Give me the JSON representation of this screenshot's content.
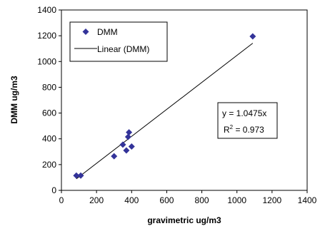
{
  "chart_data": {
    "type": "scatter",
    "title": "",
    "xlabel": "gravimetric ug/m3",
    "ylabel": "DMM ug/m3",
    "xlim": [
      0,
      1400
    ],
    "ylim": [
      0,
      1400
    ],
    "xticks": [
      0,
      200,
      400,
      600,
      800,
      1000,
      1200,
      1400
    ],
    "yticks": [
      0,
      200,
      400,
      600,
      800,
      1000,
      1200,
      1400
    ],
    "grid": false,
    "legend_position": "top-left",
    "series": [
      {
        "name": "DMM",
        "marker": "diamond",
        "color": "#333399",
        "points": [
          {
            "x": 85,
            "y": 115
          },
          {
            "x": 110,
            "y": 115
          },
          {
            "x": 300,
            "y": 265
          },
          {
            "x": 350,
            "y": 355
          },
          {
            "x": 370,
            "y": 310
          },
          {
            "x": 380,
            "y": 415
          },
          {
            "x": 385,
            "y": 450
          },
          {
            "x": 400,
            "y": 340
          },
          {
            "x": 1090,
            "y": 1195
          }
        ]
      },
      {
        "name": "Linear (DMM)",
        "type": "line",
        "color": "#000000",
        "slope": 1.0475,
        "x_range": [
          85,
          1090
        ]
      }
    ],
    "annotation": {
      "equation": "y = 1.0475x",
      "r2_prefix": "R",
      "r2_sup": "2",
      "r2_value": " = 0.973"
    }
  }
}
